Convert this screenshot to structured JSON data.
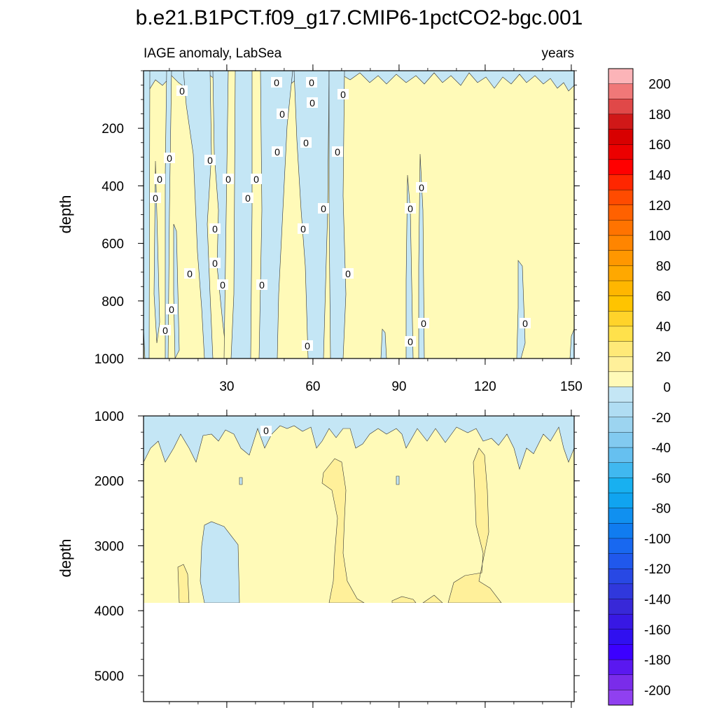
{
  "chart_data": {
    "type": "contour",
    "title": "b.e21.B1PCT.f09_g17.CMIP6-1pctCO2-bgc.001",
    "left_subtitle": "IAGE anomaly, LabSea",
    "right_subtitle": "years",
    "xlabel": "",
    "ylabel": "depth",
    "x_ticks": [
      30,
      60,
      90,
      120,
      150
    ],
    "x_ticks_labels": [
      "30",
      "60",
      "90",
      "120",
      "150"
    ],
    "xlim": [
      1,
      151
    ],
    "panels": [
      {
        "name": "upper",
        "ylim": [
          0,
          1000
        ],
        "y_inverted": true,
        "y_ticks": [
          200,
          400,
          600,
          800,
          1000
        ],
        "y_ticks_labels": [
          "200",
          "400",
          "600",
          "800",
          "1000"
        ],
        "contour_line_labels": [
          "0",
          "0",
          "0",
          "0",
          "0",
          "0",
          "0",
          "0",
          "0",
          "0",
          "0",
          "0",
          "0",
          "0",
          "0",
          "0",
          "0",
          "0",
          "0",
          "0",
          "0",
          "0",
          "0",
          "0",
          "0",
          "0",
          "0",
          "0",
          "0",
          "0",
          "0",
          "0",
          "0",
          "0"
        ]
      },
      {
        "name": "lower",
        "ylim": [
          1000,
          5400
        ],
        "y_inverted": true,
        "y_ticks": [
          1000,
          2000,
          3000,
          4000,
          5000
        ],
        "y_ticks_labels": [
          "1000",
          "2000",
          "3000",
          "4000",
          "5000"
        ],
        "data_bottom_depth": 3860,
        "contour_line_labels": [
          "0"
        ]
      }
    ],
    "colorbar": {
      "labels": [
        "200",
        "180",
        "160",
        "140",
        "120",
        "100",
        "80",
        "60",
        "40",
        "20",
        "0",
        "-20",
        "-40",
        "-60",
        "-80",
        "-100",
        "-120",
        "-140",
        "-160",
        "-180",
        "-200"
      ],
      "colors": [
        "#fcb4b8",
        "#f07878",
        "#e04848",
        "#d01818",
        "#d80000",
        "#ec0000",
        "#ff0000",
        "#ff2600",
        "#ff4b00",
        "#ff6100",
        "#ff7300",
        "#ff8500",
        "#ff9700",
        "#ffa800",
        "#ffb600",
        "#ffc400",
        "#ffd32a",
        "#ffe14b",
        "#ffe978",
        "#fff09a",
        "#fffab8",
        "#c4e6f5",
        "#b0ddf3",
        "#9cd4f0",
        "#82caf0",
        "#66c0f0",
        "#40b8f0",
        "#18b0f0",
        "#10a4f0",
        "#1090f0",
        "#107cf0",
        "#1868f0",
        "#2058ec",
        "#2848e4",
        "#3038dc",
        "#3828d8",
        "#3818e4",
        "#3010f0",
        "#3c00ff",
        "#5a18f0",
        "#7a2cea",
        "#9040f0"
      ]
    },
    "colors": {
      "positive_fill": "#fffab8",
      "positive_fill_2": "#fff09a",
      "negative_fill": "#c4e6f5"
    }
  }
}
